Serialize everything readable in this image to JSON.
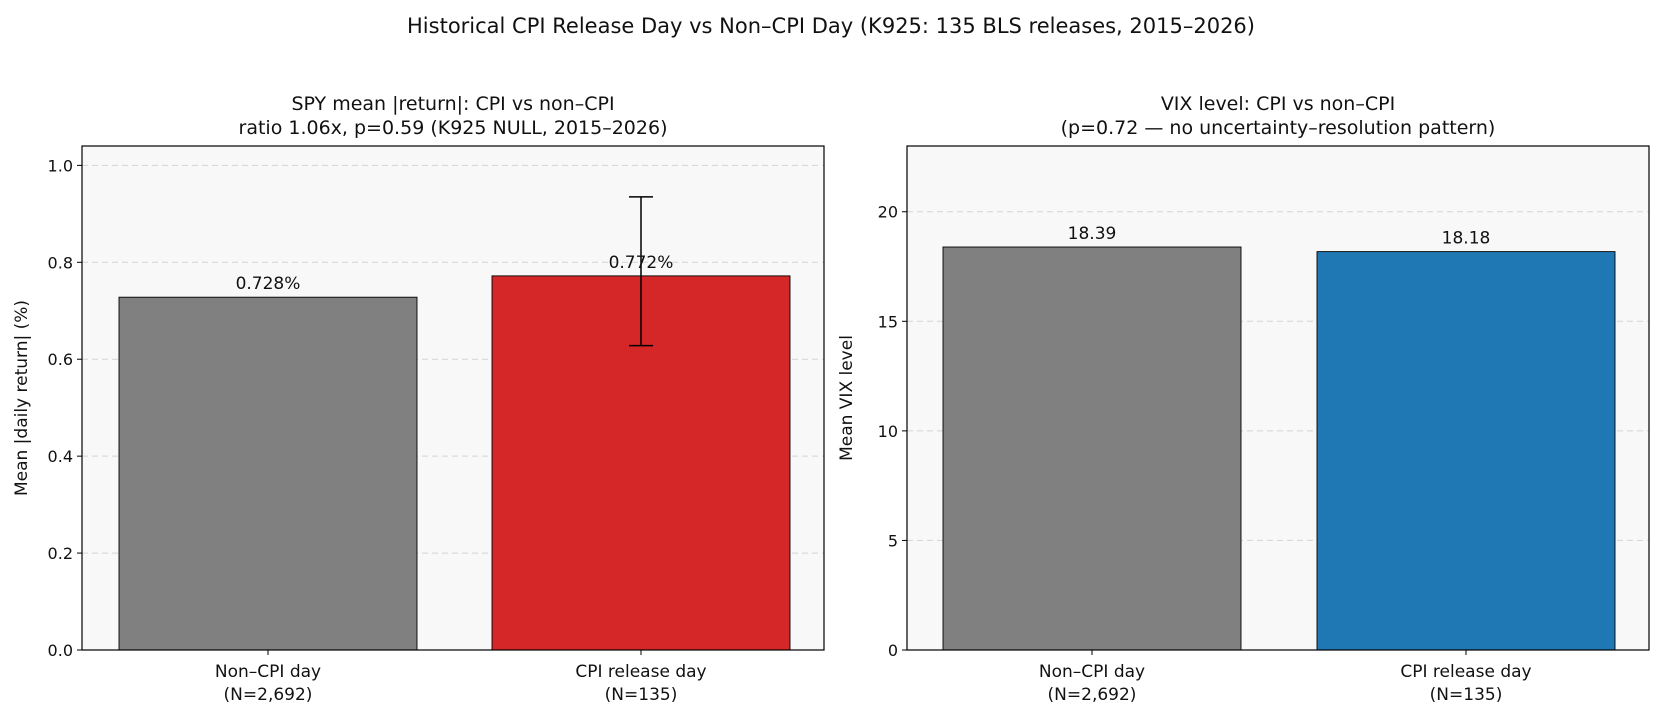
{
  "figure": {
    "suptitle": "Historical CPI Release Day vs Non–CPI Day (K925: 135 BLS releases, 2015–2026)"
  },
  "chart_data": [
    {
      "type": "bar",
      "title_line1": "SPY mean |return|: CPI vs non–CPI",
      "title_line2": "ratio 1.06x, p=0.59 (K925 NULL, 2015–2026)",
      "xlabel": "",
      "ylabel": "Mean |daily return| (%)",
      "ylim": [
        0,
        1.04
      ],
      "yticks": [
        0.0,
        0.2,
        0.4,
        0.6,
        0.8,
        1.0
      ],
      "ytick_labels": [
        "0.0",
        "0.2",
        "0.4",
        "0.6",
        "0.8",
        "1.0"
      ],
      "grid": "y dashed",
      "categories": [
        {
          "line1": "Non–CPI day",
          "line2": "(N=2,692)"
        },
        {
          "line1": "CPI release day",
          "line2": "(N=135)"
        }
      ],
      "values": [
        0.728,
        0.772
      ],
      "value_labels": [
        "0.728%",
        "0.772%"
      ],
      "error_bars": [
        null,
        [
          0.628,
          0.935
        ]
      ],
      "colors": [
        "#808080",
        "#d62728"
      ]
    },
    {
      "type": "bar",
      "title_line1": "VIX level: CPI vs non–CPI",
      "title_line2": "(p=0.72 — no uncertainty–resolution pattern)",
      "xlabel": "",
      "ylabel": "Mean VIX level",
      "ylim": [
        0,
        23
      ],
      "yticks": [
        0,
        5,
        10,
        15,
        20
      ],
      "ytick_labels": [
        "0",
        "5",
        "10",
        "15",
        "20"
      ],
      "grid": "y dashed",
      "categories": [
        {
          "line1": "Non–CPI day",
          "line2": "(N=2,692)"
        },
        {
          "line1": "CPI release day",
          "line2": "(N=135)"
        }
      ],
      "values": [
        18.39,
        18.18
      ],
      "value_labels": [
        "18.39",
        "18.18"
      ],
      "error_bars": [
        null,
        null
      ],
      "colors": [
        "#808080",
        "#1f77b4"
      ]
    }
  ]
}
